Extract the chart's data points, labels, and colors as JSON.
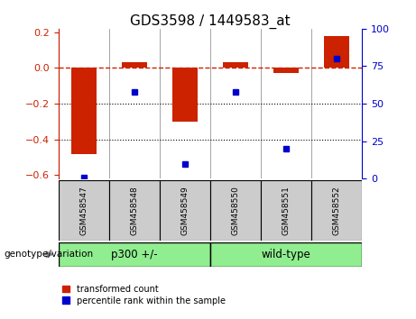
{
  "title": "GDS3598 / 1449583_at",
  "samples": [
    "GSM458547",
    "GSM458548",
    "GSM458549",
    "GSM458550",
    "GSM458551",
    "GSM458552"
  ],
  "red_values": [
    -0.48,
    0.03,
    -0.3,
    0.03,
    -0.03,
    0.18
  ],
  "blue_percentiles": [
    1,
    58,
    10,
    58,
    20,
    80
  ],
  "ylim_left": [
    -0.62,
    0.22
  ],
  "ylim_right": [
    0,
    100
  ],
  "yticks_left": [
    0.2,
    0.0,
    -0.2,
    -0.4,
    -0.6
  ],
  "yticks_right": [
    100,
    75,
    50,
    25,
    0
  ],
  "group_labels": [
    "p300 +/-",
    "wild-type"
  ],
  "group_ranges": [
    [
      0,
      2
    ],
    [
      3,
      5
    ]
  ],
  "group_color": "#90ee90",
  "sample_box_color": "#cccccc",
  "bar_color": "#cc2200",
  "dot_color": "#0000cc",
  "hline_color": "#cc2200",
  "right_axis_color": "#0000cc",
  "left_axis_color": "#cc2200",
  "legend_labels": [
    "transformed count",
    "percentile rank within the sample"
  ],
  "genotype_label": "genotype/variation",
  "bar_width": 0.5
}
